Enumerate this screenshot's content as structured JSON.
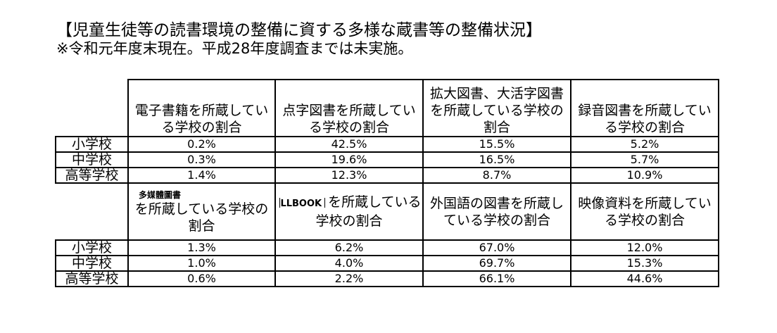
{
  "document": {
    "title": "【児童生徒等の読書環境の整備に資する多様な蔵書等の整備状況】",
    "note": "※令和元年度末現在。平成28年度調査までは未実施。"
  },
  "table": {
    "row_labels": [
      "小学校",
      "中学校",
      "高等学校"
    ],
    "block1": {
      "headers": [
        "電子書籍を所蔵している学校の割合",
        "点字図書を所蔵している学校の割合",
        "拡大図書、大活字図書を所蔵している学校の割合",
        "録音図書を所蔵している学校の割合"
      ],
      "rows": [
        [
          "0.2%",
          "42.5%",
          "15.5%",
          "5.2%"
        ],
        [
          "0.3%",
          "19.6%",
          "16.5%",
          "5.7%"
        ],
        [
          "1.4%",
          "12.3%",
          "8.7%",
          "10.9%"
        ]
      ]
    },
    "block2": {
      "headers": [
        {
          "prefix": "多媒體圖書",
          "text": "を所蔵している学校の割合"
        },
        {
          "prefix": "LLBOOK",
          "text": "を所蔵している学校の割合"
        },
        {
          "prefix": "",
          "text": "外国語の図書を所蔵している学校の割合"
        },
        {
          "prefix": "",
          "text": "映像資料を所蔵している学校の割合"
        }
      ],
      "rows": [
        [
          "1.3%",
          "6.2%",
          "67.0%",
          "12.0%"
        ],
        [
          "1.0%",
          "4.0%",
          "69.7%",
          "15.3%"
        ],
        [
          "0.6%",
          "2.2%",
          "66.1%",
          "44.6%"
        ]
      ]
    }
  }
}
